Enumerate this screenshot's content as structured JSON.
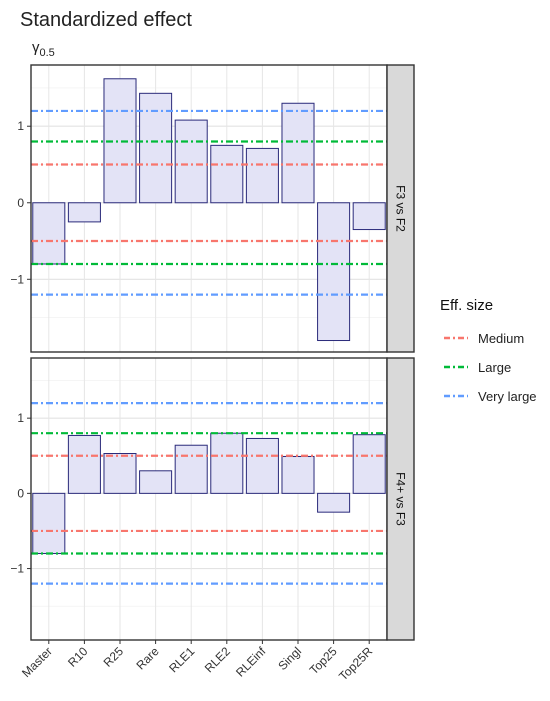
{
  "chart_data": {
    "type": "bar",
    "title": "Standardized effect",
    "ylabel": "γ0.5",
    "ylabel_main": "γ",
    "ylabel_sub": "0.5",
    "categories": [
      "Master",
      "R10",
      "R25",
      "Rare",
      "RLE1",
      "RLE2",
      "RLEinf",
      "Singl",
      "Top25",
      "Top25R"
    ],
    "ylim": [
      -1.95,
      1.8
    ],
    "yticks": [
      -1,
      0,
      1
    ],
    "grid": true,
    "facets": [
      {
        "label": "F3 vs F2",
        "values": [
          -0.8,
          -0.25,
          1.62,
          1.43,
          1.08,
          0.75,
          0.71,
          1.3,
          -1.8,
          -0.35
        ]
      },
      {
        "label": "F4+ vs F3",
        "values": [
          -0.8,
          0.77,
          0.53,
          0.3,
          0.64,
          0.8,
          0.73,
          0.49,
          -0.25,
          0.78
        ]
      }
    ],
    "reference_lines": [
      {
        "name": "Medium",
        "values": [
          0.5,
          -0.5
        ],
        "color": "#F8766D"
      },
      {
        "name": "Large",
        "values": [
          0.8,
          -0.8
        ],
        "color": "#00BA38"
      },
      {
        "name": "Very large",
        "values": [
          1.2,
          -1.2
        ],
        "color": "#619CFF"
      }
    ],
    "legend": {
      "title": "Eff. size",
      "position": "right"
    },
    "bar_fill": "#E3E3F6",
    "bar_stroke": "#2A2A7A"
  }
}
